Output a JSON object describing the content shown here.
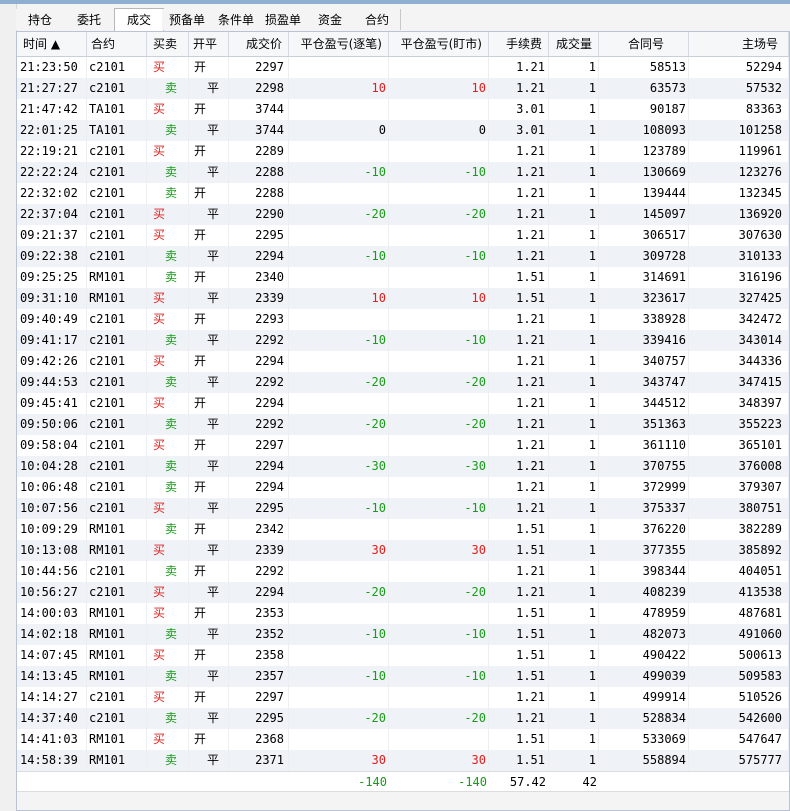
{
  "tabs": [
    "持仓",
    "委托",
    "成交",
    "预备单",
    "条件单",
    "损盈单",
    "资金",
    "合约"
  ],
  "active_tab": 2,
  "columns": [
    "时间 ▲",
    "合约",
    "买卖",
    "开平",
    "成交价",
    "平仓盈亏(逐笔)",
    "平仓盈亏(盯市)",
    "手续费",
    "成交量",
    "合同号",
    "主场号"
  ],
  "rows": [
    [
      "21:23:50",
      "c2101",
      "买",
      "开",
      "2297",
      "",
      "",
      "1.21",
      "1",
      "58513",
      "52294"
    ],
    [
      "21:27:27",
      "c2101",
      "卖",
      "平",
      "2298",
      "10",
      "10",
      "1.21",
      "1",
      "63573",
      "57532"
    ],
    [
      "21:47:42",
      "TA101",
      "买",
      "开",
      "3744",
      "",
      "",
      "3.01",
      "1",
      "90187",
      "83363"
    ],
    [
      "22:01:25",
      "TA101",
      "卖",
      "平",
      "3744",
      "0",
      "0",
      "3.01",
      "1",
      "108093",
      "101258"
    ],
    [
      "22:19:21",
      "c2101",
      "买",
      "开",
      "2289",
      "",
      "",
      "1.21",
      "1",
      "123789",
      "119961"
    ],
    [
      "22:22:24",
      "c2101",
      "卖",
      "平",
      "2288",
      "-10",
      "-10",
      "1.21",
      "1",
      "130669",
      "123276"
    ],
    [
      "22:32:02",
      "c2101",
      "卖",
      "开",
      "2288",
      "",
      "",
      "1.21",
      "1",
      "139444",
      "132345"
    ],
    [
      "22:37:04",
      "c2101",
      "买",
      "平",
      "2290",
      "-20",
      "-20",
      "1.21",
      "1",
      "145097",
      "136920"
    ],
    [
      "09:21:37",
      "c2101",
      "买",
      "开",
      "2295",
      "",
      "",
      "1.21",
      "1",
      "306517",
      "307630"
    ],
    [
      "09:22:38",
      "c2101",
      "卖",
      "平",
      "2294",
      "-10",
      "-10",
      "1.21",
      "1",
      "309728",
      "310133"
    ],
    [
      "09:25:25",
      "RM101",
      "卖",
      "开",
      "2340",
      "",
      "",
      "1.51",
      "1",
      "314691",
      "316196"
    ],
    [
      "09:31:10",
      "RM101",
      "买",
      "平",
      "2339",
      "10",
      "10",
      "1.51",
      "1",
      "323617",
      "327425"
    ],
    [
      "09:40:49",
      "c2101",
      "买",
      "开",
      "2293",
      "",
      "",
      "1.21",
      "1",
      "338928",
      "342472"
    ],
    [
      "09:41:17",
      "c2101",
      "卖",
      "平",
      "2292",
      "-10",
      "-10",
      "1.21",
      "1",
      "339416",
      "343014"
    ],
    [
      "09:42:26",
      "c2101",
      "买",
      "开",
      "2294",
      "",
      "",
      "1.21",
      "1",
      "340757",
      "344336"
    ],
    [
      "09:44:53",
      "c2101",
      "卖",
      "平",
      "2292",
      "-20",
      "-20",
      "1.21",
      "1",
      "343747",
      "347415"
    ],
    [
      "09:45:41",
      "c2101",
      "买",
      "开",
      "2294",
      "",
      "",
      "1.21",
      "1",
      "344512",
      "348397"
    ],
    [
      "09:50:06",
      "c2101",
      "卖",
      "平",
      "2292",
      "-20",
      "-20",
      "1.21",
      "1",
      "351363",
      "355223"
    ],
    [
      "09:58:04",
      "c2101",
      "买",
      "开",
      "2297",
      "",
      "",
      "1.21",
      "1",
      "361110",
      "365101"
    ],
    [
      "10:04:28",
      "c2101",
      "卖",
      "平",
      "2294",
      "-30",
      "-30",
      "1.21",
      "1",
      "370755",
      "376008"
    ],
    [
      "10:06:48",
      "c2101",
      "卖",
      "开",
      "2294",
      "",
      "",
      "1.21",
      "1",
      "372999",
      "379307"
    ],
    [
      "10:07:56",
      "c2101",
      "买",
      "平",
      "2295",
      "-10",
      "-10",
      "1.21",
      "1",
      "375337",
      "380751"
    ],
    [
      "10:09:29",
      "RM101",
      "卖",
      "开",
      "2342",
      "",
      "",
      "1.51",
      "1",
      "376220",
      "382289"
    ],
    [
      "10:13:08",
      "RM101",
      "买",
      "平",
      "2339",
      "30",
      "30",
      "1.51",
      "1",
      "377355",
      "385892"
    ],
    [
      "10:44:56",
      "c2101",
      "卖",
      "开",
      "2292",
      "",
      "",
      "1.21",
      "1",
      "398344",
      "404051"
    ],
    [
      "10:56:27",
      "c2101",
      "买",
      "平",
      "2294",
      "-20",
      "-20",
      "1.21",
      "1",
      "408239",
      "413538"
    ],
    [
      "14:00:03",
      "RM101",
      "买",
      "开",
      "2353",
      "",
      "",
      "1.51",
      "1",
      "478959",
      "487681"
    ],
    [
      "14:02:18",
      "RM101",
      "卖",
      "平",
      "2352",
      "-10",
      "-10",
      "1.51",
      "1",
      "482073",
      "491060"
    ],
    [
      "14:07:45",
      "RM101",
      "买",
      "开",
      "2358",
      "",
      "",
      "1.51",
      "1",
      "490422",
      "500613"
    ],
    [
      "14:13:45",
      "RM101",
      "卖",
      "平",
      "2357",
      "-10",
      "-10",
      "1.51",
      "1",
      "499039",
      "509583"
    ],
    [
      "14:14:27",
      "c2101",
      "买",
      "开",
      "2297",
      "",
      "",
      "1.21",
      "1",
      "499914",
      "510526"
    ],
    [
      "14:37:40",
      "c2101",
      "卖",
      "平",
      "2295",
      "-20",
      "-20",
      "1.21",
      "1",
      "528834",
      "542600"
    ],
    [
      "14:41:03",
      "RM101",
      "买",
      "开",
      "2368",
      "",
      "",
      "1.51",
      "1",
      "533069",
      "547647"
    ],
    [
      "14:58:39",
      "RM101",
      "卖",
      "平",
      "2371",
      "30",
      "30",
      "1.51",
      "1",
      "558894",
      "575777"
    ]
  ],
  "summary": {
    "pnl_trade": "-140",
    "pnl_mark": "-140",
    "fee": "57.42",
    "volume": "42"
  },
  "colors": {
    "buy": "#e0201c",
    "sell": "#1a9a1a",
    "loss": "#1a9a1a",
    "profit": "#e0201c"
  }
}
